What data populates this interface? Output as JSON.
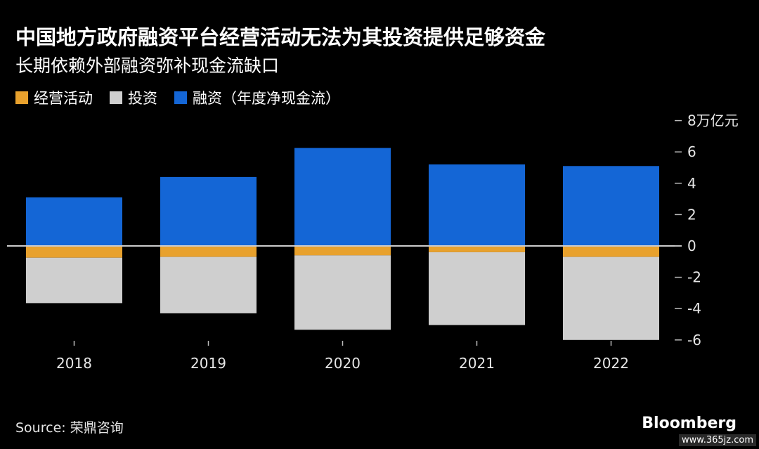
{
  "title": "中国地方政府融资平台经营活动无法为其投资提供足够资金",
  "subtitle": "长期依赖外部融资弥补现金流缺口",
  "legend": [
    {
      "label": "经营活动",
      "color": "#e8a12d"
    },
    {
      "label": "投资",
      "color": "#cfcfcf"
    },
    {
      "label": "融资（年度净现金流）",
      "color": "#1466d6"
    }
  ],
  "source": "Source: 荣鼎咨询",
  "brand": "Bloomberg",
  "watermark": "www.365jz.com",
  "chart_data": {
    "type": "bar",
    "stacked": true,
    "categories": [
      "2018",
      "2019",
      "2020",
      "2021",
      "2022"
    ],
    "series": [
      {
        "name": "经营活动",
        "color": "#e8a12d",
        "values": [
          -0.75,
          -0.7,
          -0.6,
          -0.4,
          -0.7
        ]
      },
      {
        "name": "投资",
        "color": "#cfcfcf",
        "values": [
          -2.9,
          -3.6,
          -4.75,
          -4.65,
          -5.3
        ]
      },
      {
        "name": "融资（年度净现金流）",
        "color": "#1466d6",
        "values": [
          3.1,
          4.4,
          6.25,
          5.2,
          5.1
        ]
      }
    ],
    "y_unit_label": "8万亿元",
    "y_ticks": [
      8,
      6,
      4,
      2,
      0,
      -2,
      -4,
      -6
    ],
    "y_tick_labels": [
      "8万亿元",
      "6",
      "4",
      "2",
      "0",
      "-2",
      "-4",
      "-6"
    ],
    "ylim": [
      -6.5,
      8
    ],
    "axis_position": "right",
    "grid": false,
    "legend_position": "top-left"
  }
}
